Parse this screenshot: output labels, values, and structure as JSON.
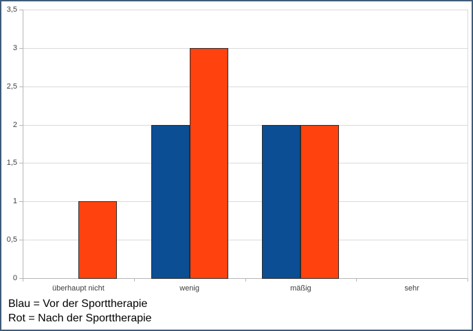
{
  "chart_data": {
    "type": "bar",
    "title": "",
    "xlabel": "",
    "ylabel": "",
    "categories": [
      "überhaupt nicht",
      "wenig",
      "mäßig",
      "sehr"
    ],
    "series": [
      {
        "name": "Vor der Sporttherapie",
        "color_label": "Blau",
        "color": "#0b4e93",
        "values": [
          0,
          2,
          2,
          0
        ]
      },
      {
        "name": "Nach der Sporttherapie",
        "color_label": "Rot",
        "color": "#ff420e",
        "values": [
          1,
          3,
          2,
          0
        ]
      }
    ],
    "ylim": [
      0,
      3.5
    ],
    "ytick_step": 0.5,
    "ytick_labels": [
      "0",
      "0,5",
      "1",
      "1,5",
      "2",
      "2,5",
      "3",
      "3,5"
    ],
    "grid": true,
    "legend_position": "bottom-left"
  },
  "legend": {
    "line1": "Blau = Vor der Sporttherapie",
    "line2": "Rot = Nach der Sporttherapie"
  },
  "colors": {
    "bar_blue": "#0b4e93",
    "bar_red": "#ff420e",
    "frame_border": "#3e5b79",
    "gridline": "#d9d9d9",
    "axis_line": "#b5b5b5",
    "bar_border": "#2b2b2b",
    "axis_text": "#3d3d3d",
    "legend_text": "#000000"
  }
}
